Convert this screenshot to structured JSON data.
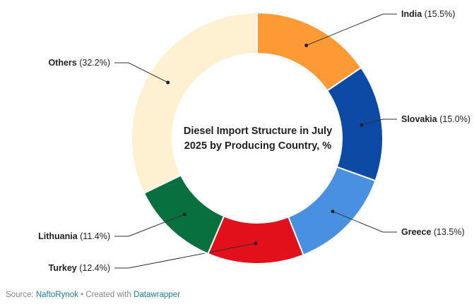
{
  "chart_data": {
    "type": "pie",
    "title": "Diesel Import Structure in July 2025 by Producing Country, %",
    "slices": [
      {
        "name": "India",
        "value": 15.5,
        "label": "(15.5%)",
        "color": "#fd9a36"
      },
      {
        "name": "Slovakia",
        "value": 15.0,
        "label": "(15.0%)",
        "color": "#0d4aa6"
      },
      {
        "name": "Greece",
        "value": 13.5,
        "label": "(13.5%)",
        "color": "#4a90e2"
      },
      {
        "name": "Turkey",
        "value": 12.4,
        "label": "(12.4%)",
        "color": "#e1101a"
      },
      {
        "name": "Lithuania",
        "value": 11.4,
        "label": "(11.4%)",
        "color": "#08703f"
      },
      {
        "name": "Others",
        "value": 32.2,
        "label": "(32.2%)",
        "color": "#fdf1d2"
      }
    ]
  },
  "footer": {
    "source_prefix": "Source: ",
    "source_name": "NaftoRynok",
    "separator": " • Created with ",
    "tool_name": "Datawrapper"
  }
}
